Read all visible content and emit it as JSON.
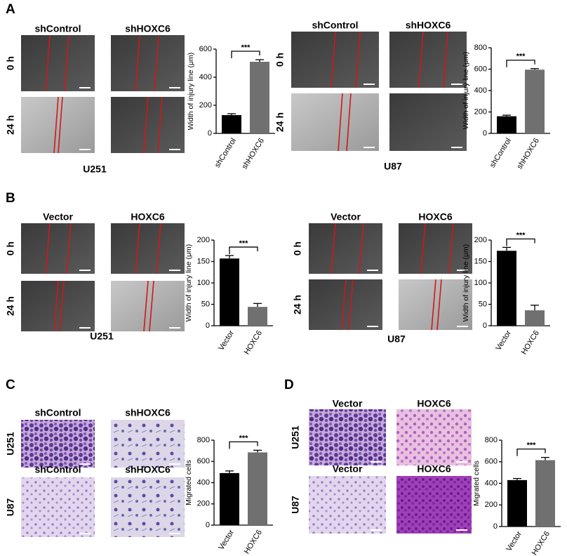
{
  "letters": [
    "A",
    "B",
    "C",
    "D"
  ],
  "blocks": [
    {
      "columns": [
        "shControl",
        "shHOXC6"
      ],
      "rows": [
        "0 h",
        "24 h"
      ],
      "caption": "U251"
    },
    {
      "columns": [
        "shControl",
        "shHOXC6"
      ],
      "rows": [
        "0 h",
        "24 h"
      ],
      "caption": "U87"
    },
    {
      "columns": [
        "Vector",
        "HOXC6"
      ],
      "rows": [
        "0 h",
        "24 h"
      ],
      "caption": "U251"
    },
    {
      "columns": [
        "Vector",
        "HOXC6"
      ],
      "rows": [
        "0 h",
        "24 h"
      ],
      "caption": "U87"
    },
    {
      "columns": [
        "shControl",
        "shHOXC6"
      ],
      "columns_2": [
        "shControl",
        "shHOXC6"
      ],
      "rows": [
        "U251",
        "U87"
      ]
    },
    {
      "columns": [
        "Vector",
        "HOXC6"
      ],
      "columns_2": [
        "Vector",
        "HOXC6"
      ],
      "rows": [
        "U251",
        "U87"
      ]
    }
  ],
  "chart_data": [
    {
      "type": "bar",
      "y_label": "Width of injury line (μm)",
      "categories": [
        "shControl",
        "shHOXC6"
      ],
      "values": [
        130,
        510
      ],
      "errors": [
        10,
        15
      ],
      "colors": [
        "#000000",
        "#707070"
      ],
      "annotation": "***",
      "ylim": [
        0,
        600
      ],
      "yticks": [
        0,
        200,
        400,
        600
      ]
    },
    {
      "type": "bar",
      "y_label": "Width of injury line (μm)",
      "categories": [
        "shControl",
        "shHOXC6"
      ],
      "values": [
        160,
        595
      ],
      "errors": [
        10,
        10
      ],
      "colors": [
        "#000000",
        "#707070"
      ],
      "annotation": "***",
      "ylim": [
        0,
        800
      ],
      "yticks": [
        0,
        200,
        400,
        600,
        800
      ]
    },
    {
      "type": "bar",
      "y_label": "Width of injury line (μm)",
      "categories": [
        "Vector",
        "HOXC6"
      ],
      "values": [
        157,
        44
      ],
      "errors": [
        7,
        8
      ],
      "colors": [
        "#000000",
        "#707070"
      ],
      "annotation": "***",
      "ylim": [
        0,
        200
      ],
      "yticks": [
        0,
        50,
        100,
        150,
        200
      ]
    },
    {
      "type": "bar",
      "y_label": "Width of injury line (μm)",
      "categories": [
        "Vector",
        "HOXC6"
      ],
      "values": [
        175,
        36
      ],
      "errors": [
        8,
        12
      ],
      "colors": [
        "#000000",
        "#707070"
      ],
      "annotation": "***",
      "ylim": [
        0,
        200
      ],
      "yticks": [
        0,
        50,
        100,
        150,
        200
      ]
    },
    {
      "type": "bar",
      "y_label": "Migrated cells",
      "categories": [
        "Vector",
        "HOXC6"
      ],
      "values": [
        490,
        685
      ],
      "errors": [
        20,
        20
      ],
      "colors": [
        "#000000",
        "#707070"
      ],
      "annotation": "***",
      "ylim": [
        0,
        800
      ],
      "yticks": [
        0,
        200,
        400,
        600,
        800
      ]
    },
    {
      "type": "bar",
      "y_label": "Migrated cells",
      "categories": [
        "Vector",
        "HOXC6"
      ],
      "values": [
        430,
        615
      ],
      "errors": [
        15,
        25
      ],
      "colors": [
        "#000000",
        "#707070"
      ],
      "annotation": "***",
      "ylim": [
        0,
        800
      ],
      "yticks": [
        0,
        200,
        400,
        600,
        800
      ]
    }
  ]
}
